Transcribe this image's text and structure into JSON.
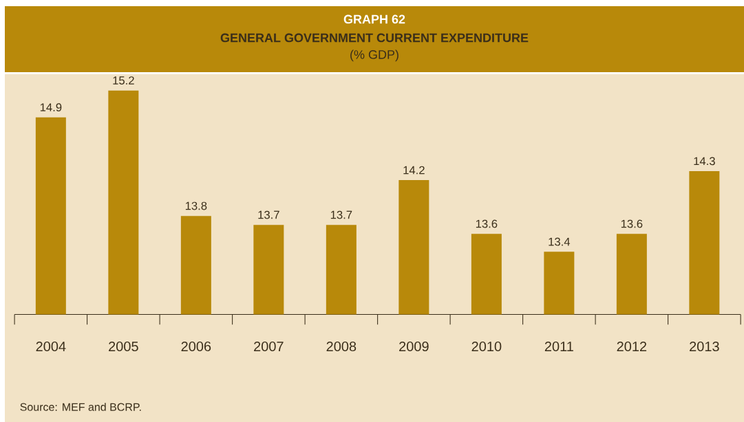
{
  "chart_data": {
    "type": "bar",
    "title": "GRAPH 62",
    "subtitle": "GENERAL GOVERNMENT CURRENT EXPENDITURE",
    "ylabel": "(% GDP)",
    "categories": [
      "2004",
      "2005",
      "2006",
      "2007",
      "2008",
      "2009",
      "2010",
      "2011",
      "2012",
      "2013"
    ],
    "values": [
      14.9,
      15.2,
      13.8,
      13.7,
      13.7,
      14.2,
      13.6,
      13.4,
      13.6,
      14.3
    ],
    "color": "#b8890a",
    "ylim": [
      12.7,
      15.4
    ],
    "data_labels": true,
    "annotations": [
      "Source: MEF and BCRP."
    ]
  }
}
